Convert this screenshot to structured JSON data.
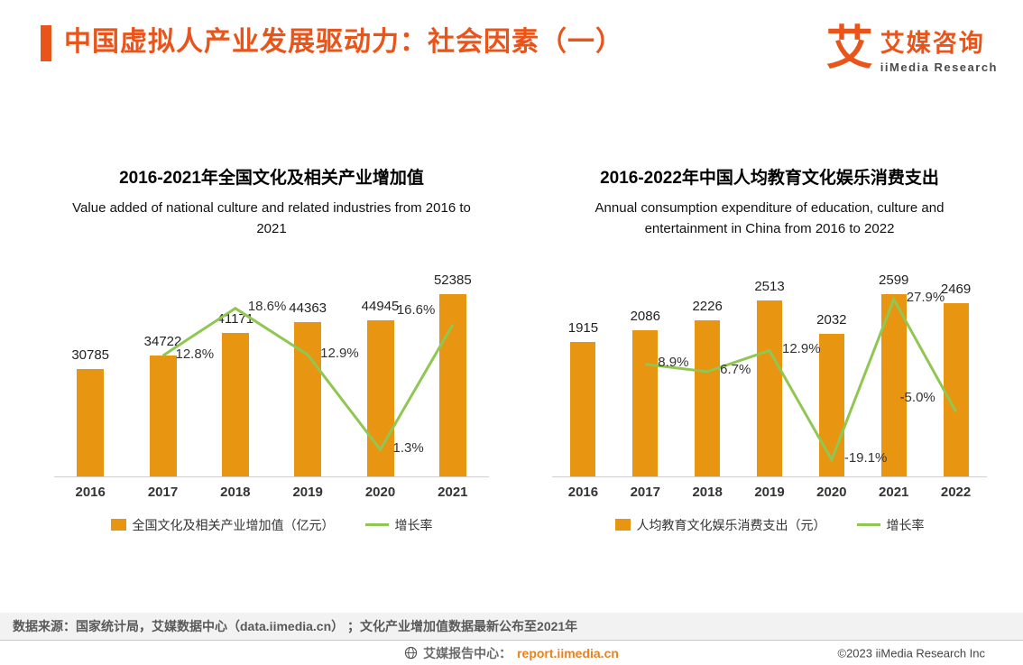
{
  "header": {
    "title": "中国虚拟人产业发展驱动力：社会因素（一）",
    "logo": {
      "mark": "艾",
      "name": "艾媒咨询",
      "subtitle": "iiMedia Research"
    }
  },
  "chart_data": [
    {
      "type": "bar",
      "title": "2016-2021年全国文化及相关产业增加值",
      "subtitle": "Value added of national culture and related industries from 2016 to 2021",
      "categories": [
        "2016",
        "2017",
        "2018",
        "2019",
        "2020",
        "2021"
      ],
      "series": [
        {
          "name": "全国文化及相关产业增加值（亿元）",
          "type": "bar",
          "values": [
            30785,
            34722,
            41171,
            44363,
            44945,
            52385
          ]
        },
        {
          "name": "增长率",
          "type": "line",
          "values": [
            null,
            12.8,
            18.6,
            12.9,
            1.3,
            16.6
          ],
          "point_labels": [
            "",
            "12.8%",
            "18.6%",
            "12.9%",
            "1.3%",
            "16.6%"
          ]
        }
      ],
      "bar_color": "#E89511",
      "line_color": "#90C652",
      "pct_axis_range": [
        -2,
        21
      ],
      "grid": false,
      "legend_position": "bottom"
    },
    {
      "type": "bar",
      "title": "2016-2022年中国人均教育文化娱乐消费支出",
      "subtitle": "Annual consumption expenditure of education, culture and entertainment in China from 2016 to 2022",
      "categories": [
        "2016",
        "2017",
        "2018",
        "2019",
        "2020",
        "2021",
        "2022"
      ],
      "series": [
        {
          "name": "人均教育文化娱乐消费支出（元）",
          "type": "bar",
          "values": [
            1915,
            2086,
            2226,
            2513,
            2032,
            2599,
            2469
          ]
        },
        {
          "name": "增长率",
          "type": "line",
          "values": [
            null,
            8.9,
            6.7,
            12.9,
            -19.1,
            27.9,
            -5.0
          ],
          "point_labels": [
            "",
            "8.9%",
            "6.7%",
            "12.9%",
            "-19.1%",
            "27.9%",
            "-5.0%"
          ]
        }
      ],
      "bar_color": "#E89511",
      "line_color": "#90C652",
      "pct_axis_range": [
        -24,
        31
      ],
      "grid": false,
      "legend_position": "bottom"
    }
  ],
  "footer": {
    "source": "数据来源：国家统计局，艾媒数据中心（data.iimedia.cn） ；文化产业增加值数据最新公布至2021年",
    "report_center_label": "艾媒报告中心：",
    "report_center_link": "report.iimedia.cn",
    "copyright": "©2023  iiMedia Research  Inc"
  }
}
